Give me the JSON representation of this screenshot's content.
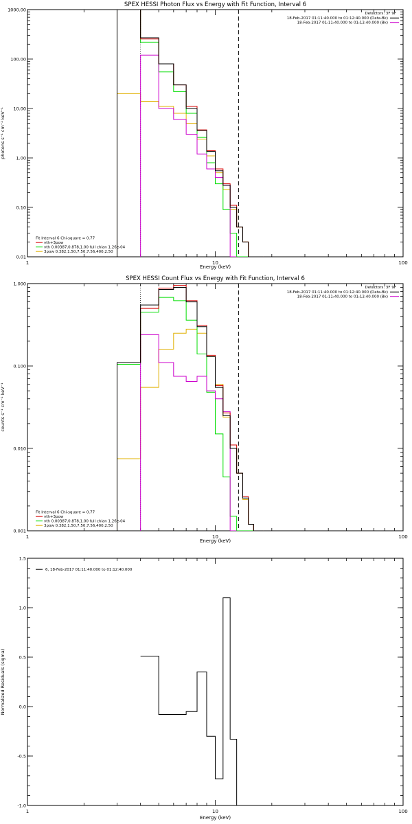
{
  "colors": {
    "total": "#000000",
    "vth_3pow": "#d40000",
    "vth": "#00dd00",
    "3pow": "#e0b000",
    "background": "#cc00cc"
  },
  "chart_data": [
    {
      "type": "line",
      "title": "SPEX HESSI Photon Flux vs Energy with Fit Function, Interval 6",
      "xlabel": "Energy (keV)",
      "ylabel": "photons s⁻¹ cm⁻² keV⁻¹",
      "xscale": "log",
      "yscale": "log",
      "xlim": [
        1,
        100
      ],
      "ylim": [
        0.01,
        1000
      ],
      "xticks": [
        {
          "v": 1,
          "label": "1"
        },
        {
          "v": 10,
          "label": "10"
        },
        {
          "v": 100,
          "label": "100"
        }
      ],
      "yticks": [
        {
          "v": 0.01,
          "label": "0.01"
        },
        {
          "v": 0.1,
          "label": "0.10"
        },
        {
          "v": 1,
          "label": "1.00"
        },
        {
          "v": 10,
          "label": "10.00"
        },
        {
          "v": 100,
          "label": "100.00"
        },
        {
          "v": 1000,
          "label": "1000.00"
        }
      ],
      "detector_label": "Detectors: 3F 9F",
      "legend_topright": [
        {
          "text": "18-Feb-2017 01:11:40.000 to 01:12:40.000 (Data-Bk)",
          "color_key": "total"
        },
        {
          "text": "18-Feb-2017 01:11:40.000 to 01:12:40.000 (Bk)",
          "color_key": "background"
        }
      ],
      "legend_bottomleft": [
        {
          "text": "Fit Interval 6   Chi-square = 0.77",
          "color_key": null
        },
        {
          "text": "vth+3pow",
          "color_key": "vth_3pow"
        },
        {
          "text": "vth 0.00387,0.878,1.00  full chian 1.26e-04",
          "color_key": "vth"
        },
        {
          "text": "3pow 0.382,1.50,7.50,7.56,400,2.50",
          "color_key": "3pow"
        }
      ],
      "dashed_line_x": 13.3,
      "dotted_line_x": 4.0,
      "edges": [
        3,
        4,
        5,
        6,
        7,
        8,
        9,
        10,
        11,
        12,
        13,
        14,
        15,
        16,
        17,
        18
      ],
      "series": [
        {
          "color_key": "total",
          "values": [
            1000,
            270,
            80,
            30,
            10,
            3.6,
            1.35,
            0.55,
            0.28,
            0.1,
            0.04,
            0.02,
            0.01,
            0.01,
            0.01
          ]
        },
        {
          "color_key": "vth_3pow",
          "values": [
            1000,
            255,
            80,
            30,
            11,
            3.7,
            1.4,
            0.6,
            0.3,
            0.11,
            0.04,
            0.02,
            0.01,
            0.01,
            0.01
          ]
        },
        {
          "color_key": "vth",
          "values": [
            1000,
            220,
            55,
            22,
            8,
            2.6,
            0.8,
            0.3,
            0.09,
            0.03,
            0.01,
            0.01,
            0.01,
            0.01,
            0.01
          ]
        },
        {
          "color_key": "3pow",
          "values": [
            20,
            14,
            11,
            8,
            5,
            2.4,
            1.1,
            0.5,
            0.23,
            0.09,
            0.04,
            0.02,
            0.01,
            0.01,
            0.01
          ]
        },
        {
          "color_key": "background",
          "values": [
            null,
            120,
            10,
            6,
            3,
            1.2,
            0.6,
            0.4,
            0.28,
            0.01,
            null,
            null,
            null,
            null,
            null
          ]
        }
      ]
    },
    {
      "type": "line",
      "title": "SPEX HESSI Count Flux vs Energy with Fit Function, Interval 6",
      "xlabel": "Energy (keV)",
      "ylabel": "counts s⁻¹ cm⁻² keV⁻¹",
      "xscale": "log",
      "yscale": "log",
      "xlim": [
        1,
        100
      ],
      "ylim": [
        0.001,
        1
      ],
      "xticks": [
        {
          "v": 1,
          "label": "1"
        },
        {
          "v": 10,
          "label": "10"
        },
        {
          "v": 100,
          "label": "100"
        }
      ],
      "yticks": [
        {
          "v": 0.001,
          "label": "0.001"
        },
        {
          "v": 0.01,
          "label": "0.010"
        },
        {
          "v": 0.1,
          "label": "0.100"
        },
        {
          "v": 1,
          "label": "1.000"
        }
      ],
      "detector_label": "Detectors: 3F 9F",
      "legend_topright": [
        {
          "text": "18-Feb-2017 01:11:40.000 to 01:12:40.000 (Data-Bk)",
          "color_key": "total"
        },
        {
          "text": "18-Feb-2017 01:11:40.000 to 01:12:40.000 (Bk)",
          "color_key": "background"
        }
      ],
      "legend_bottomleft": [
        {
          "text": "Fit Interval 6   Chi-square = 0.77",
          "color_key": null
        },
        {
          "text": "vth+3pow",
          "color_key": "vth_3pow"
        },
        {
          "text": "vth 0.00387,0.878,1.00  full chian 1.26e-04",
          "color_key": "vth"
        },
        {
          "text": "3pow 0.382,1.50,7.50,7.56,400,2.50",
          "color_key": "3pow"
        }
      ],
      "dashed_line_x": 13.3,
      "dotted_line_x": 4.0,
      "edges": [
        3,
        4,
        5,
        6,
        7,
        8,
        9,
        10,
        11,
        12,
        13,
        14,
        15,
        16,
        17,
        18
      ],
      "series": [
        {
          "color_key": "total",
          "values": [
            0.11,
            0.55,
            0.85,
            0.9,
            0.6,
            0.3,
            0.13,
            0.055,
            0.025,
            0.01,
            0.005,
            0.0025,
            0.0012,
            0.001,
            0.001
          ]
        },
        {
          "color_key": "vth_3pow",
          "values": [
            0.11,
            0.5,
            0.88,
            0.95,
            0.62,
            0.31,
            0.135,
            0.058,
            0.027,
            0.011,
            0.005,
            0.0026,
            0.0012,
            0.001,
            0.001
          ]
        },
        {
          "color_key": "vth",
          "values": [
            0.105,
            0.45,
            0.68,
            0.62,
            0.36,
            0.14,
            0.048,
            0.015,
            0.0045,
            0.0015,
            0.001,
            0.001,
            0.001,
            0.001,
            0.001
          ]
        },
        {
          "color_key": "3pow",
          "values": [
            0.0075,
            0.055,
            0.16,
            0.25,
            0.28,
            0.25,
            0.13,
            0.06,
            0.024,
            0.01,
            0.005,
            0.0024,
            0.0012,
            0.001,
            0.001
          ]
        },
        {
          "color_key": "background",
          "values": [
            null,
            0.24,
            0.11,
            0.075,
            0.065,
            0.075,
            0.05,
            0.04,
            0.028,
            0.001,
            null,
            null,
            null,
            null,
            null
          ]
        }
      ]
    },
    {
      "type": "line",
      "title": "",
      "xlabel": "Energy (keV)",
      "ylabel": "Normalized Residuals (sigma)",
      "xscale": "log",
      "yscale": "linear",
      "xlim": [
        1,
        100
      ],
      "ylim": [
        -1.0,
        1.5
      ],
      "xticks": [
        {
          "v": 1,
          "label": "1"
        },
        {
          "v": 10,
          "label": "10"
        },
        {
          "v": 100,
          "label": "100"
        }
      ],
      "yticks": [
        {
          "v": -1.0,
          "label": "-1.0"
        },
        {
          "v": -0.5,
          "label": "-0.5"
        },
        {
          "v": 0.0,
          "label": "0.0"
        },
        {
          "v": 0.5,
          "label": "0.5"
        },
        {
          "v": 1.0,
          "label": "1.0"
        },
        {
          "v": 1.5,
          "label": "1.5"
        }
      ],
      "legend_topleft": [
        {
          "text": "6, 18-Feb-2017 01:11:40.000 to 01:12:40.000",
          "color_key": "total"
        }
      ],
      "edges": [
        4,
        5,
        6,
        7,
        8,
        9,
        10,
        11,
        12,
        13
      ],
      "series": [
        {
          "color_key": "total",
          "values": [
            0.51,
            -0.08,
            -0.08,
            -0.05,
            0.35,
            -0.3,
            -0.73,
            1.1,
            -0.33
          ]
        }
      ]
    }
  ]
}
